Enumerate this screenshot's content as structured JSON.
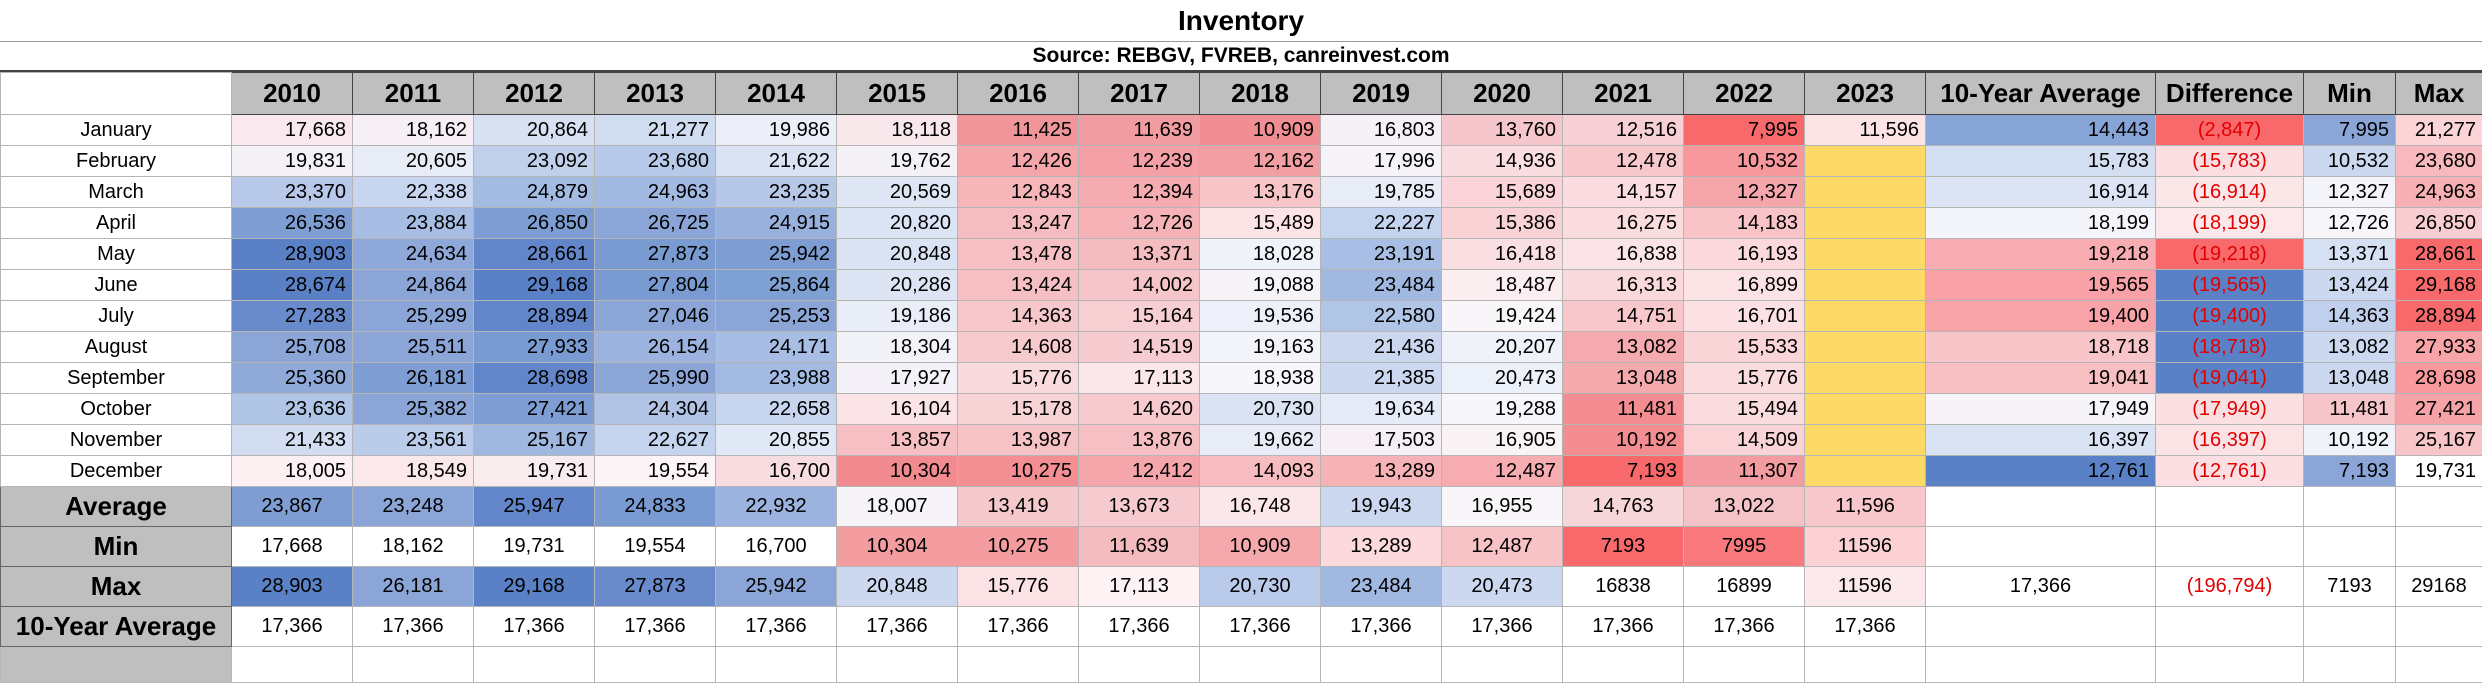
{
  "title": "Inventory",
  "subtitle": "Source: REBGV, FVREB, canreinvest.com",
  "columns": [
    "2010",
    "2011",
    "2012",
    "2013",
    "2014",
    "2015",
    "2016",
    "2017",
    "2018",
    "2019",
    "2020",
    "2021",
    "2022",
    "2023",
    "10-Year Average",
    "Difference",
    "Min",
    "Max"
  ],
  "months": [
    {
      "name": "January",
      "values": [
        "17,668",
        "18,162",
        "20,864",
        "21,277",
        "19,986",
        "18,118",
        "11,425",
        "11,639",
        "10,909",
        "16,803",
        "13,760",
        "12,516",
        "7,995",
        "11,596",
        "14,443",
        "(2,847)",
        "7,995",
        "21,277"
      ]
    },
    {
      "name": "February",
      "values": [
        "19,831",
        "20,605",
        "23,092",
        "23,680",
        "21,622",
        "19,762",
        "12,426",
        "12,239",
        "12,162",
        "17,996",
        "14,936",
        "12,478",
        "10,532",
        "",
        "15,783",
        "(15,783)",
        "10,532",
        "23,680"
      ]
    },
    {
      "name": "March",
      "values": [
        "23,370",
        "22,338",
        "24,879",
        "24,963",
        "23,235",
        "20,569",
        "12,843",
        "12,394",
        "13,176",
        "19,785",
        "15,689",
        "14,157",
        "12,327",
        "",
        "16,914",
        "(16,914)",
        "12,327",
        "24,963"
      ]
    },
    {
      "name": "April",
      "values": [
        "26,536",
        "23,884",
        "26,850",
        "26,725",
        "24,915",
        "20,820",
        "13,247",
        "12,726",
        "15,489",
        "22,227",
        "15,386",
        "16,275",
        "14,183",
        "",
        "18,199",
        "(18,199)",
        "12,726",
        "26,850"
      ]
    },
    {
      "name": "May",
      "values": [
        "28,903",
        "24,634",
        "28,661",
        "27,873",
        "25,942",
        "20,848",
        "13,478",
        "13,371",
        "18,028",
        "23,191",
        "16,418",
        "16,838",
        "16,193",
        "",
        "19,218",
        "(19,218)",
        "13,371",
        "28,661"
      ]
    },
    {
      "name": "June",
      "values": [
        "28,674",
        "24,864",
        "29,168",
        "27,804",
        "25,864",
        "20,286",
        "13,424",
        "14,002",
        "19,088",
        "23,484",
        "18,487",
        "16,313",
        "16,899",
        "",
        "19,565",
        "(19,565)",
        "13,424",
        "29,168"
      ]
    },
    {
      "name": "July",
      "values": [
        "27,283",
        "25,299",
        "28,894",
        "27,046",
        "25,253",
        "19,186",
        "14,363",
        "15,164",
        "19,536",
        "22,580",
        "19,424",
        "14,751",
        "16,701",
        "",
        "19,400",
        "(19,400)",
        "14,363",
        "28,894"
      ]
    },
    {
      "name": "August",
      "values": [
        "25,708",
        "25,511",
        "27,933",
        "26,154",
        "24,171",
        "18,304",
        "14,608",
        "14,519",
        "19,163",
        "21,436",
        "20,207",
        "13,082",
        "15,533",
        "",
        "18,718",
        "(18,718)",
        "13,082",
        "27,933"
      ]
    },
    {
      "name": "September",
      "values": [
        "25,360",
        "26,181",
        "28,698",
        "25,990",
        "23,988",
        "17,927",
        "15,776",
        "17,113",
        "18,938",
        "21,385",
        "20,473",
        "13,048",
        "15,776",
        "",
        "19,041",
        "(19,041)",
        "13,048",
        "28,698"
      ]
    },
    {
      "name": "October",
      "values": [
        "23,636",
        "25,382",
        "27,421",
        "24,304",
        "22,658",
        "16,104",
        "15,178",
        "14,620",
        "20,730",
        "19,634",
        "19,288",
        "11,481",
        "15,494",
        "",
        "17,949",
        "(17,949)",
        "11,481",
        "27,421"
      ]
    },
    {
      "name": "November",
      "values": [
        "21,433",
        "23,561",
        "25,167",
        "22,627",
        "20,855",
        "13,857",
        "13,987",
        "13,876",
        "19,662",
        "17,503",
        "16,905",
        "10,192",
        "14,509",
        "",
        "16,397",
        "(16,397)",
        "10,192",
        "25,167"
      ]
    },
    {
      "name": "December",
      "values": [
        "18,005",
        "18,549",
        "19,731",
        "19,554",
        "16,700",
        "10,304",
        "10,275",
        "12,412",
        "14,093",
        "13,289",
        "12,487",
        "7,193",
        "11,307",
        "",
        "12,761",
        "(12,761)",
        "7,193",
        "19,731"
      ]
    }
  ],
  "summary": [
    {
      "label": "Average",
      "values": [
        "23,867",
        "23,248",
        "25,947",
        "24,833",
        "22,932",
        "18,007",
        "13,419",
        "13,673",
        "16,748",
        "19,943",
        "16,955",
        "14,763",
        "13,022",
        "11,596",
        "",
        "",
        "",
        ""
      ]
    },
    {
      "label": "Min",
      "values": [
        "17,668",
        "18,162",
        "19,731",
        "19,554",
        "16,700",
        "10,304",
        "10,275",
        "11,639",
        "10,909",
        "13,289",
        "12,487",
        "7193",
        "7995",
        "11596",
        "",
        "",
        "",
        ""
      ]
    },
    {
      "label": "Max",
      "values": [
        "28,903",
        "26,181",
        "29,168",
        "27,873",
        "25,942",
        "20,848",
        "15,776",
        "17,113",
        "20,730",
        "23,484",
        "20,473",
        "16838",
        "16899",
        "11596",
        "17,366",
        "(196,794)",
        "7193",
        "29168"
      ]
    },
    {
      "label": "10-Year Average",
      "values": [
        "17,366",
        "17,366",
        "17,366",
        "17,366",
        "17,366",
        "17,366",
        "17,366",
        "17,366",
        "17,366",
        "17,366",
        "17,366",
        "17,366",
        "17,366",
        "17,366",
        "",
        "",
        "",
        ""
      ]
    }
  ],
  "colors": {
    "month_cells": [
      [
        "#f9e9ee",
        "#f6f0f6",
        "#d7e1f1",
        "#d0dcf0",
        "#eceff8",
        "#f8e8ec",
        "#f0959a",
        "#f09ca1",
        "#f08e93",
        "#f6f1f7",
        "#f5c7cc",
        "#f6d0d4",
        "#f8696b",
        "#fbe3e6",
        "#87a4d6",
        "#f8696b",
        "#8aa5d6",
        "#fbd4d8"
      ],
      [
        "#f5f2f7",
        "#e7ecf7",
        "#c0d0eb",
        "#b8caea",
        "#dae3f3",
        "#f5f2f7",
        "#f4a6ab",
        "#f3a1a6",
        "#f29fa4",
        "#f6f4f9",
        "#f9dde1",
        "#f7c8cc",
        "#f6989c",
        "#ffd966",
        "#d3def1",
        "#fbdee1",
        "#cbd8ef",
        "#f7b9bd"
      ],
      [
        "#b7c8e8",
        "#c7d5ee",
        "#a4bbe2",
        "#a2b9e1",
        "#b6c7e8",
        "#dee6f4",
        "#f5b5b9",
        "#f5acb1",
        "#f7c4c8",
        "#e8edf8",
        "#fad4d8",
        "#fbdce0",
        "#f4a6ab",
        "#ffd966",
        "#dbe3f4",
        "#fbe6e8",
        "#f3f5fa",
        "#f7b1b5"
      ],
      [
        "#7e9ed3",
        "#a8bde3",
        "#7e9ed3",
        "#8aa5d6",
        "#98b1dc",
        "#dbe4f4",
        "#f5bdc1",
        "#f6b3b7",
        "#fbe3e6",
        "#c5d4ee",
        "#f9d2d6",
        "#fadcdf",
        "#f8c4c8",
        "#ffd966",
        "#f3f5fa",
        "#fbe8eb",
        "#f7f6fa",
        "#f8cdd1"
      ],
      [
        "#5a81c6",
        "#8ea9d9",
        "#6286c9",
        "#7a9bd1",
        "#7e9ed3",
        "#d9e3f4",
        "#f5bfc3",
        "#f5bcc0",
        "#f1f3fa",
        "#a9bee4",
        "#fadfe2",
        "#fae4e7",
        "#fad8db",
        "#ffd966",
        "#f7adb1",
        "#f8696b",
        "#d5e0f2",
        "#f8696b"
      ],
      [
        "#5a81c6",
        "#8aa5d6",
        "#5a81c6",
        "#7a9bd1",
        "#7fa0d3",
        "#dde5f4",
        "#f5bfc3",
        "#f5c5c9",
        "#f6f4f9",
        "#a1b8e0",
        "#fbeef1",
        "#f9d9dc",
        "#fbe2e5",
        "#ffd966",
        "#f8a1a6",
        "#5a81c6",
        "#ccd8ef",
        "#f8696b"
      ],
      [
        "#6a8bcb",
        "#8aa5d6",
        "#6286c9",
        "#8aa5d6",
        "#8aa5d6",
        "#e9edf7",
        "#f6c7cb",
        "#f7ced2",
        "#eef0f9",
        "#b1c5e6",
        "#f9f6f9",
        "#f7c7cb",
        "#fbe1e4",
        "#ffd966",
        "#f8a3a8",
        "#5a81c6",
        "#c0cfeb",
        "#f8696b"
      ],
      [
        "#8aa5d6",
        "#8aa5d6",
        "#7a9bd1",
        "#9bb3de",
        "#a7bde3",
        "#f2f2f9",
        "#f7cacd",
        "#f7ccd0",
        "#f2f4fa",
        "#cad7ef",
        "#f0f2f9",
        "#f4aaae",
        "#f9d5d8",
        "#ffd966",
        "#f8c5c9",
        "#5a81c6",
        "#ccd8ef",
        "#f7a5a9"
      ],
      [
        "#8fa9d9",
        "#7e9ed3",
        "#6286c9",
        "#8aa5d6",
        "#a3bae2",
        "#f4f2f8",
        "#f9dbde",
        "#fbe6e9",
        "#f7f6fa",
        "#cbd8ef",
        "#ecf0f8",
        "#f4a9ad",
        "#fadcdf",
        "#ffd966",
        "#f8bfc3",
        "#5a81c6",
        "#cad7ef",
        "#f7999d"
      ],
      [
        "#b0c4e6",
        "#8aa5d6",
        "#7e9ed3",
        "#b1c4e6",
        "#c7d5ee",
        "#fbe4e7",
        "#f8d3d6",
        "#f7cbce",
        "#d9e3f4",
        "#e5ebf7",
        "#f7f6fa",
        "#f38d91",
        "#fadbde",
        "#ffd966",
        "#f6f4f9",
        "#fbe0e3",
        "#f5c5c9",
        "#f6a3a7"
      ],
      [
        "#d2ddf1",
        "#bbcbea",
        "#a0b7e0",
        "#c5d4ee",
        "#e1e8f6",
        "#f6bfc3",
        "#f6c2c6",
        "#f6bfc3",
        "#e7ecf7",
        "#f6f0f6",
        "#faf3f5",
        "#f48d91",
        "#f9d3d6",
        "#ffd966",
        "#d9e3f4",
        "#fbe2e5",
        "#f1f3fa",
        "#f7c4c8"
      ],
      [
        "#fcf0f2",
        "#fae8eb",
        "#f8ecef",
        "#fcf4f6",
        "#f8dde0",
        "#f28b8f",
        "#f38e92",
        "#f4a6ab",
        "#f7bcc0",
        "#f5b3b7",
        "#f6acb0",
        "#f8696b",
        "#f29ca1",
        "#ffd966",
        "#5a81c6",
        "#fbdfe2",
        "#8aa5d6",
        "#ffffff"
      ]
    ],
    "summary_cells": [
      [
        "#7e9ed3",
        "#8aa5d6",
        "#6286c9",
        "#7a9bd1",
        "#9bb3de",
        "#f6f4f9",
        "#f5c8cc",
        "#f5cbcf",
        "#fbe6e9",
        "#cad7ef",
        "#f9f6f9",
        "#f7d6d9",
        "#f4c3c7",
        "#f8c7cb",
        "#ffffff",
        "#ffffff",
        "#ffffff",
        "#ffffff"
      ],
      [
        "#ffffff",
        "#ffffff",
        "#ffffff",
        "#ffffff",
        "#ffffff",
        "#f49da1",
        "#f49da1",
        "#f5bcc0",
        "#f5a9ad",
        "#fbd9dc",
        "#f8c3c7",
        "#f8696b",
        "#f8797c",
        "#fbd1d4",
        "#ffffff",
        "#ffffff",
        "#ffffff",
        "#ffffff"
      ],
      [
        "#5a81c6",
        "#8aa5d6",
        "#5a81c6",
        "#6a8bcb",
        "#8aa5d6",
        "#ccd8ef",
        "#fbe2e5",
        "#fdf3f5",
        "#bacaea",
        "#a1b8e0",
        "#ccd8ef",
        "#ffffff",
        "#ffffff",
        "#fbe9eb",
        "#ffffff",
        "#ffffff",
        "#ffffff",
        "#ffffff"
      ],
      [
        "#ffffff",
        "#ffffff",
        "#ffffff",
        "#ffffff",
        "#ffffff",
        "#ffffff",
        "#ffffff",
        "#ffffff",
        "#ffffff",
        "#ffffff",
        "#ffffff",
        "#ffffff",
        "#ffffff",
        "#ffffff",
        "#ffffff",
        "#ffffff",
        "#ffffff",
        "#ffffff"
      ]
    ]
  }
}
